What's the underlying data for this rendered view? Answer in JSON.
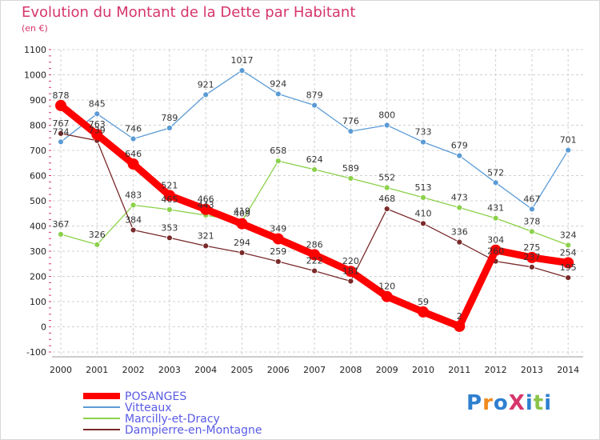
{
  "title": "Evolution du Montant de la Dette par Habitant",
  "subtitle": "(en €)",
  "logo_text": "ProXiti",
  "chart_data": {
    "type": "line",
    "title": "Evolution du Montant de la Dette par Habitant",
    "subtitle": "(en €)",
    "xlabel": "",
    "ylabel": "",
    "categories": [
      "2000",
      "2001",
      "2002",
      "2003",
      "2004",
      "2005",
      "2006",
      "2007",
      "2008",
      "2009",
      "2010",
      "2011",
      "2012",
      "2013",
      "2014"
    ],
    "ylim": [
      -100,
      1100
    ],
    "yticks": [
      "-100",
      "0",
      "100",
      "200",
      "300",
      "400",
      "500",
      "600",
      "700",
      "800",
      "900",
      "1000",
      "1100"
    ],
    "grid": "horizontal dashed",
    "legend_position": "bottom",
    "series": [
      {
        "name": "POSANGES",
        "color": "#ff0000",
        "emphasis": true,
        "values": [
          878,
          763,
          646,
          521,
          466,
          409,
          349,
          286,
          220,
          120,
          59,
          2,
          304,
          275,
          254
        ],
        "labels": [
          "878",
          "763",
          "646",
          "521",
          "466",
          "409",
          "349",
          "286",
          "220",
          "120",
          "59",
          "2",
          "304",
          "275",
          "254"
        ]
      },
      {
        "name": "Vitteaux",
        "color": "#5b9bd5",
        "values": [
          734,
          845,
          746,
          789,
          921,
          1017,
          924,
          879,
          776,
          800,
          733,
          679,
          572,
          467,
          701
        ],
        "labels": [
          "734",
          "845",
          "746",
          "789",
          "921",
          "1017",
          "924",
          "879",
          "776",
          "800",
          "733",
          "679",
          "572",
          "467",
          "701"
        ]
      },
      {
        "name": "Marcilly-et-Dracy",
        "color": "#8bd14a",
        "values": [
          367,
          326,
          483,
          465,
          443,
          419,
          658,
          624,
          589,
          552,
          513,
          473,
          431,
          378,
          324
        ],
        "labels": [
          "367",
          "326",
          "483",
          "465",
          "443",
          "419",
          "658",
          "624",
          "589",
          "552",
          "513",
          "473",
          "431",
          "378",
          "324"
        ]
      },
      {
        "name": "Dampierre-en-Montagne",
        "color": "#7a2a2a",
        "values": [
          767,
          739,
          384,
          353,
          321,
          294,
          259,
          222,
          181,
          468,
          410,
          336,
          260,
          237,
          195
        ],
        "labels": [
          "767",
          "739",
          "384",
          "353",
          "321",
          "294",
          "259",
          "222",
          "181",
          "468",
          "410",
          "336",
          "260",
          "237",
          "195"
        ]
      }
    ]
  }
}
